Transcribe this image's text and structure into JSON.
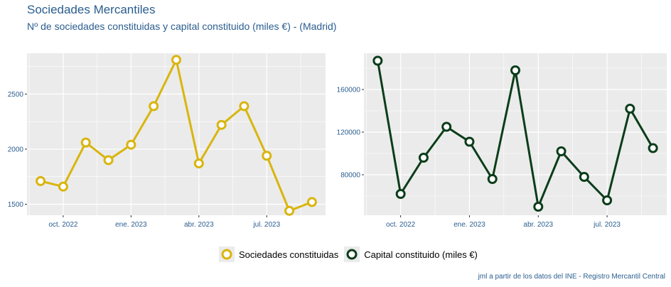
{
  "title": "Sociedades Mercantiles",
  "subtitle": "Nº de sociedades constituidas y capital constituido (miles €) - (Madrid)",
  "caption": "jml a partir de los datos del INE - Registro Mercantil Central",
  "legend": {
    "series1": "Sociedades constituidas",
    "series2": "Capital constituido (miles €)"
  },
  "colors": {
    "series1": "#d9b50e",
    "series2": "#0b3d1a",
    "panel": "#ebebeb",
    "tick_text": "#2a5d8f"
  },
  "chart_data": [
    {
      "type": "line",
      "x": [
        "2022-09",
        "2022-10",
        "2022-11",
        "2022-12",
        "2023-01",
        "2023-02",
        "2023-03",
        "2023-04",
        "2023-05",
        "2023-06",
        "2023-07",
        "2023-08",
        "2023-09"
      ],
      "x_tick_labels": [
        "oct. 2022",
        "ene. 2023",
        "abr. 2023",
        "jul. 2023"
      ],
      "x_tick_positions": [
        "2022-10",
        "2023-01",
        "2023-04",
        "2023-07"
      ],
      "series": [
        {
          "name": "Sociedades constituidas",
          "values": [
            1710,
            1660,
            2060,
            1900,
            2040,
            2390,
            2810,
            1870,
            2220,
            2390,
            1940,
            1440,
            1520
          ]
        }
      ],
      "y_ticks": [
        1500,
        2000,
        2500
      ],
      "ylim": [
        1400,
        2870
      ],
      "grid": true
    },
    {
      "type": "line",
      "x": [
        "2022-09",
        "2022-10",
        "2022-11",
        "2022-12",
        "2023-01",
        "2023-02",
        "2023-03",
        "2023-04",
        "2023-05",
        "2023-06",
        "2023-07",
        "2023-08",
        "2023-09"
      ],
      "x_tick_labels": [
        "oct. 2022",
        "ene. 2023",
        "abr. 2023",
        "jul. 2023"
      ],
      "x_tick_positions": [
        "2022-10",
        "2023-01",
        "2023-04",
        "2023-07"
      ],
      "series": [
        {
          "name": "Capital constituido (miles €)",
          "values": [
            187000,
            62000,
            96000,
            125000,
            111000,
            76000,
            178000,
            50000,
            102000,
            78000,
            56000,
            142000,
            105000
          ]
        }
      ],
      "y_ticks": [
        80000,
        120000,
        160000
      ],
      "y_tick_labels": [
        "80000",
        "120000",
        "160000"
      ],
      "ylim": [
        42000,
        194000
      ],
      "grid": true
    }
  ]
}
